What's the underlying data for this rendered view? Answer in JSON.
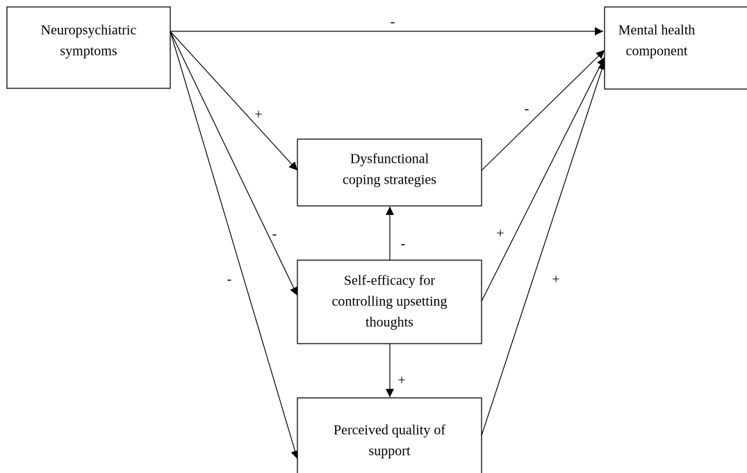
{
  "nodes": [
    {
      "lines": [
        "Neuropsychiatric",
        "symptoms"
      ]
    },
    {
      "lines": [
        "Mental health",
        "component"
      ]
    },
    {
      "lines": [
        "Dysfunctional",
        "coping strategies"
      ]
    },
    {
      "lines": [
        "Self-efficacy for",
        "controlling upsetting",
        "thoughts"
      ]
    },
    {
      "lines": [
        "Perceived quality of",
        "support"
      ]
    }
  ],
  "edges": [
    {
      "label": "-"
    },
    {
      "label": "+"
    },
    {
      "label": "-"
    },
    {
      "label": "-"
    },
    {
      "label": "-"
    },
    {
      "label": "-"
    },
    {
      "label": "+"
    },
    {
      "label": "+"
    },
    {
      "label": "+"
    }
  ]
}
